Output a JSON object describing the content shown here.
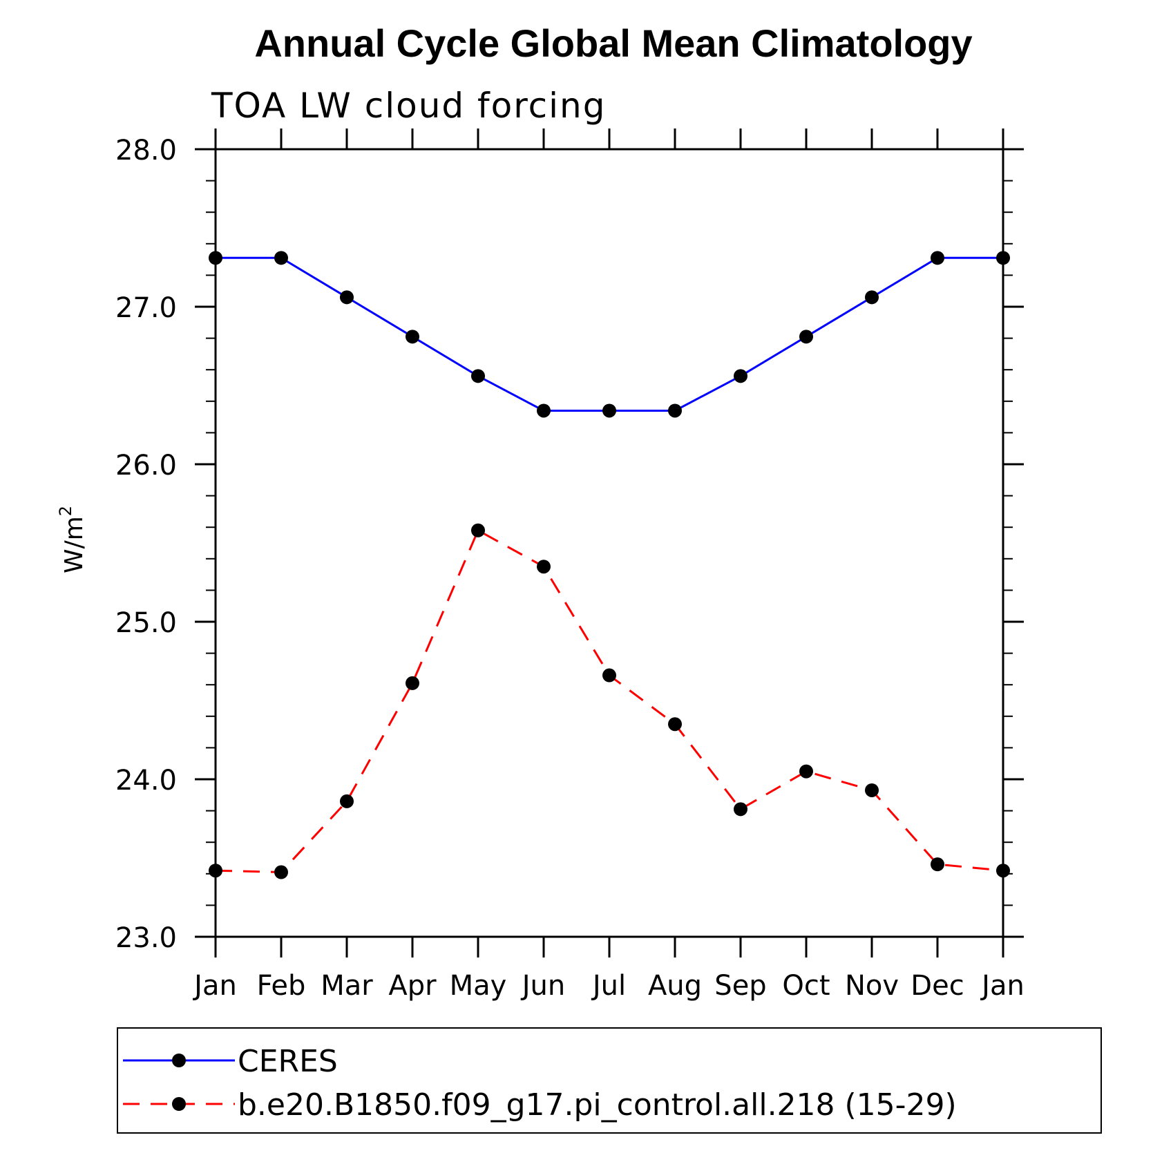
{
  "chart_data": {
    "type": "line",
    "title": "Annual Cycle Global Mean Climatology",
    "subtitle": "TOA LW cloud forcing",
    "ylabel": "W/m",
    "ylabel_superscript": "2",
    "xlabel": "",
    "categories": [
      "Jan",
      "Feb",
      "Mar",
      "Apr",
      "May",
      "Jun",
      "Jul",
      "Aug",
      "Sep",
      "Oct",
      "Nov",
      "Dec",
      "Jan"
    ],
    "ylim": [
      23.0,
      28.0
    ],
    "yticks": [
      "23.0",
      "24.0",
      "25.0",
      "26.0",
      "27.0",
      "28.0"
    ],
    "yminor_step": 0.2,
    "grid": false,
    "legend_position": "bottom",
    "series": [
      {
        "name": "CERES",
        "color": "#0000ff",
        "dash": "solid",
        "marker": "circle",
        "values": [
          27.31,
          27.31,
          27.06,
          26.81,
          26.56,
          26.34,
          26.34,
          26.34,
          26.56,
          26.81,
          27.06,
          27.31,
          27.31
        ]
      },
      {
        "name": "b.e20.B1850.f09_g17.pi_control.all.218 (15-29)",
        "color": "#ff0000",
        "dash": "dashed",
        "marker": "circle",
        "values": [
          23.42,
          23.41,
          23.86,
          24.61,
          25.58,
          25.35,
          24.66,
          24.35,
          23.81,
          24.05,
          23.93,
          23.46,
          23.42
        ]
      }
    ]
  }
}
